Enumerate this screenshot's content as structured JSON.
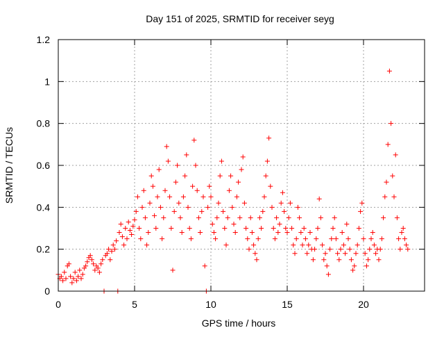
{
  "chart_data": {
    "type": "scatter",
    "title": "Day 151 of 2025, SRMTID for receiver seyg",
    "xlabel": "GPS time / hours",
    "ylabel": "SRMTID / TECUs",
    "xlim": [
      0,
      24
    ],
    "ylim": [
      0,
      1.2
    ],
    "x_ticks": [
      0,
      5,
      10,
      15,
      20
    ],
    "x_tick_labels": [
      "0",
      "5",
      "10",
      "15",
      "20"
    ],
    "y_ticks": [
      0,
      0.2,
      0.4,
      0.6,
      0.8,
      1.0,
      1.2
    ],
    "y_tick_labels": [
      "0",
      "0.2",
      "0.4",
      "0.6",
      "0.8",
      "1",
      "1.2"
    ],
    "grid": true,
    "marker": "+",
    "series": [
      {
        "name": "SRMTID",
        "color": "#ff0000",
        "points": [
          [
            0.0,
            0.08
          ],
          [
            0.1,
            0.06
          ],
          [
            0.2,
            0.07
          ],
          [
            0.3,
            0.05
          ],
          [
            0.4,
            0.09
          ],
          [
            0.5,
            0.06
          ],
          [
            0.6,
            0.12
          ],
          [
            0.7,
            0.13
          ],
          [
            0.8,
            0.07
          ],
          [
            0.9,
            0.04
          ],
          [
            1.0,
            0.06
          ],
          [
            1.1,
            0.09
          ],
          [
            1.2,
            0.05
          ],
          [
            1.3,
            0.07
          ],
          [
            1.4,
            0.1
          ],
          [
            1.5,
            0.06
          ],
          [
            1.6,
            0.08
          ],
          [
            1.7,
            0.11
          ],
          [
            1.8,
            0.12
          ],
          [
            1.9,
            0.14
          ],
          [
            2.0,
            0.16
          ],
          [
            2.1,
            0.17
          ],
          [
            2.2,
            0.15
          ],
          [
            2.3,
            0.13
          ],
          [
            2.4,
            0.1
          ],
          [
            2.5,
            0.12
          ],
          [
            2.6,
            0.11
          ],
          [
            2.7,
            0.09
          ],
          [
            2.8,
            0.13
          ],
          [
            2.9,
            0.15
          ],
          [
            3.0,
            0.0
          ],
          [
            3.1,
            0.17
          ],
          [
            3.2,
            0.18
          ],
          [
            3.3,
            0.2
          ],
          [
            3.4,
            0.15
          ],
          [
            3.5,
            0.19
          ],
          [
            3.6,
            0.22
          ],
          [
            3.7,
            0.2
          ],
          [
            3.8,
            0.24
          ],
          [
            3.9,
            0.0
          ],
          [
            4.0,
            0.28
          ],
          [
            4.1,
            0.32
          ],
          [
            4.2,
            0.26
          ],
          [
            4.3,
            0.22
          ],
          [
            4.4,
            0.3
          ],
          [
            4.5,
            0.25
          ],
          [
            4.6,
            0.33
          ],
          [
            4.7,
            0.29
          ],
          [
            4.8,
            0.27
          ],
          [
            4.9,
            0.31
          ],
          [
            5.0,
            0.34
          ],
          [
            5.1,
            0.38
          ],
          [
            5.2,
            0.45
          ],
          [
            5.3,
            0.3
          ],
          [
            5.4,
            0.25
          ],
          [
            5.5,
            0.4
          ],
          [
            5.6,
            0.48
          ],
          [
            5.7,
            0.35
          ],
          [
            5.8,
            0.22
          ],
          [
            5.9,
            0.28
          ],
          [
            6.0,
            0.42
          ],
          [
            6.1,
            0.55
          ],
          [
            6.2,
            0.5
          ],
          [
            6.3,
            0.36
          ],
          [
            6.4,
            0.3
          ],
          [
            6.5,
            0.45
          ],
          [
            6.6,
            0.58
          ],
          [
            6.7,
            0.4
          ],
          [
            6.8,
            0.25
          ],
          [
            6.9,
            0.35
          ],
          [
            7.0,
            0.48
          ],
          [
            7.1,
            0.69
          ],
          [
            7.2,
            0.62
          ],
          [
            7.3,
            0.45
          ],
          [
            7.4,
            0.3
          ],
          [
            7.5,
            0.1
          ],
          [
            7.6,
            0.38
          ],
          [
            7.7,
            0.52
          ],
          [
            7.8,
            0.6
          ],
          [
            7.9,
            0.42
          ],
          [
            8.0,
            0.35
          ],
          [
            8.1,
            0.28
          ],
          [
            8.2,
            0.45
          ],
          [
            8.3,
            0.55
          ],
          [
            8.4,
            0.65
          ],
          [
            8.5,
            0.4
          ],
          [
            8.6,
            0.3
          ],
          [
            8.7,
            0.25
          ],
          [
            8.8,
            0.5
          ],
          [
            8.9,
            0.72
          ],
          [
            9.0,
            0.6
          ],
          [
            9.1,
            0.48
          ],
          [
            9.2,
            0.35
          ],
          [
            9.3,
            0.28
          ],
          [
            9.4,
            0.38
          ],
          [
            9.5,
            0.45
          ],
          [
            9.6,
            0.12
          ],
          [
            9.7,
            0.0
          ],
          [
            9.8,
            0.4
          ],
          [
            9.9,
            0.5
          ],
          [
            10.0,
            0.45
          ],
          [
            10.1,
            0.32
          ],
          [
            10.2,
            0.28
          ],
          [
            10.3,
            0.25
          ],
          [
            10.4,
            0.35
          ],
          [
            10.5,
            0.42
          ],
          [
            10.6,
            0.55
          ],
          [
            10.7,
            0.62
          ],
          [
            10.8,
            0.38
          ],
          [
            10.9,
            0.3
          ],
          [
            11.0,
            0.22
          ],
          [
            11.1,
            0.35
          ],
          [
            11.2,
            0.48
          ],
          [
            11.3,
            0.55
          ],
          [
            11.4,
            0.4
          ],
          [
            11.5,
            0.32
          ],
          [
            11.6,
            0.28
          ],
          [
            11.7,
            0.45
          ],
          [
            11.8,
            0.52
          ],
          [
            11.9,
            0.35
          ],
          [
            12.0,
            0.58
          ],
          [
            12.1,
            0.64
          ],
          [
            12.2,
            0.42
          ],
          [
            12.3,
            0.3
          ],
          [
            12.4,
            0.25
          ],
          [
            12.5,
            0.2
          ],
          [
            12.6,
            0.35
          ],
          [
            12.7,
            0.28
          ],
          [
            12.8,
            0.22
          ],
          [
            12.9,
            0.18
          ],
          [
            13.0,
            0.15
          ],
          [
            13.1,
            0.25
          ],
          [
            13.2,
            0.35
          ],
          [
            13.3,
            0.3
          ],
          [
            13.4,
            0.38
          ],
          [
            13.5,
            0.45
          ],
          [
            13.6,
            0.55
          ],
          [
            13.7,
            0.62
          ],
          [
            13.8,
            0.73
          ],
          [
            13.9,
            0.5
          ],
          [
            14.0,
            0.4
          ],
          [
            14.1,
            0.3
          ],
          [
            14.2,
            0.25
          ],
          [
            14.3,
            0.35
          ],
          [
            14.4,
            0.28
          ],
          [
            14.5,
            0.32
          ],
          [
            14.6,
            0.42
          ],
          [
            14.7,
            0.47
          ],
          [
            14.8,
            0.38
          ],
          [
            14.9,
            0.3
          ],
          [
            15.0,
            0.28
          ],
          [
            15.1,
            0.35
          ],
          [
            15.2,
            0.42
          ],
          [
            15.3,
            0.3
          ],
          [
            15.4,
            0.22
          ],
          [
            15.5,
            0.18
          ],
          [
            15.6,
            0.25
          ],
          [
            15.7,
            0.4
          ],
          [
            15.8,
            0.35
          ],
          [
            15.9,
            0.28
          ],
          [
            16.0,
            0.22
          ],
          [
            16.1,
            0.3
          ],
          [
            16.2,
            0.25
          ],
          [
            16.3,
            0.18
          ],
          [
            16.4,
            0.22
          ],
          [
            16.5,
            0.28
          ],
          [
            16.6,
            0.2
          ],
          [
            16.7,
            0.15
          ],
          [
            16.8,
            0.2
          ],
          [
            16.9,
            0.25
          ],
          [
            17.0,
            0.3
          ],
          [
            17.1,
            0.44
          ],
          [
            17.2,
            0.35
          ],
          [
            17.3,
            0.22
          ],
          [
            17.4,
            0.15
          ],
          [
            17.5,
            0.18
          ],
          [
            17.6,
            0.12
          ],
          [
            17.7,
            0.08
          ],
          [
            17.8,
            0.2
          ],
          [
            17.9,
            0.25
          ],
          [
            18.0,
            0.3
          ],
          [
            18.1,
            0.35
          ],
          [
            18.2,
            0.25
          ],
          [
            18.3,
            0.18
          ],
          [
            18.4,
            0.15
          ],
          [
            18.5,
            0.2
          ],
          [
            18.6,
            0.28
          ],
          [
            18.7,
            0.22
          ],
          [
            18.8,
            0.18
          ],
          [
            18.9,
            0.32
          ],
          [
            19.0,
            0.25
          ],
          [
            19.1,
            0.2
          ],
          [
            19.2,
            0.15
          ],
          [
            19.3,
            0.1
          ],
          [
            19.4,
            0.12
          ],
          [
            19.5,
            0.18
          ],
          [
            19.6,
            0.22
          ],
          [
            19.7,
            0.3
          ],
          [
            19.8,
            0.38
          ],
          [
            19.9,
            0.42
          ],
          [
            20.0,
            0.25
          ],
          [
            20.1,
            0.18
          ],
          [
            20.2,
            0.12
          ],
          [
            20.3,
            0.15
          ],
          [
            20.4,
            0.2
          ],
          [
            20.5,
            0.25
          ],
          [
            20.6,
            0.28
          ],
          [
            20.7,
            0.22
          ],
          [
            20.8,
            0.18
          ],
          [
            20.9,
            0.2
          ],
          [
            21.0,
            0.15
          ],
          [
            21.1,
            0.2
          ],
          [
            21.2,
            0.25
          ],
          [
            21.3,
            0.35
          ],
          [
            21.4,
            0.45
          ],
          [
            21.5,
            0.52
          ],
          [
            21.6,
            0.7
          ],
          [
            21.7,
            1.05
          ],
          [
            21.8,
            0.8
          ],
          [
            21.9,
            0.55
          ],
          [
            22.0,
            0.45
          ],
          [
            22.1,
            0.65
          ],
          [
            22.2,
            0.35
          ],
          [
            22.3,
            0.25
          ],
          [
            22.4,
            0.2
          ],
          [
            22.5,
            0.28
          ],
          [
            22.6,
            0.3
          ],
          [
            22.7,
            0.25
          ],
          [
            22.8,
            0.22
          ],
          [
            22.9,
            0.2
          ]
        ]
      }
    ]
  }
}
